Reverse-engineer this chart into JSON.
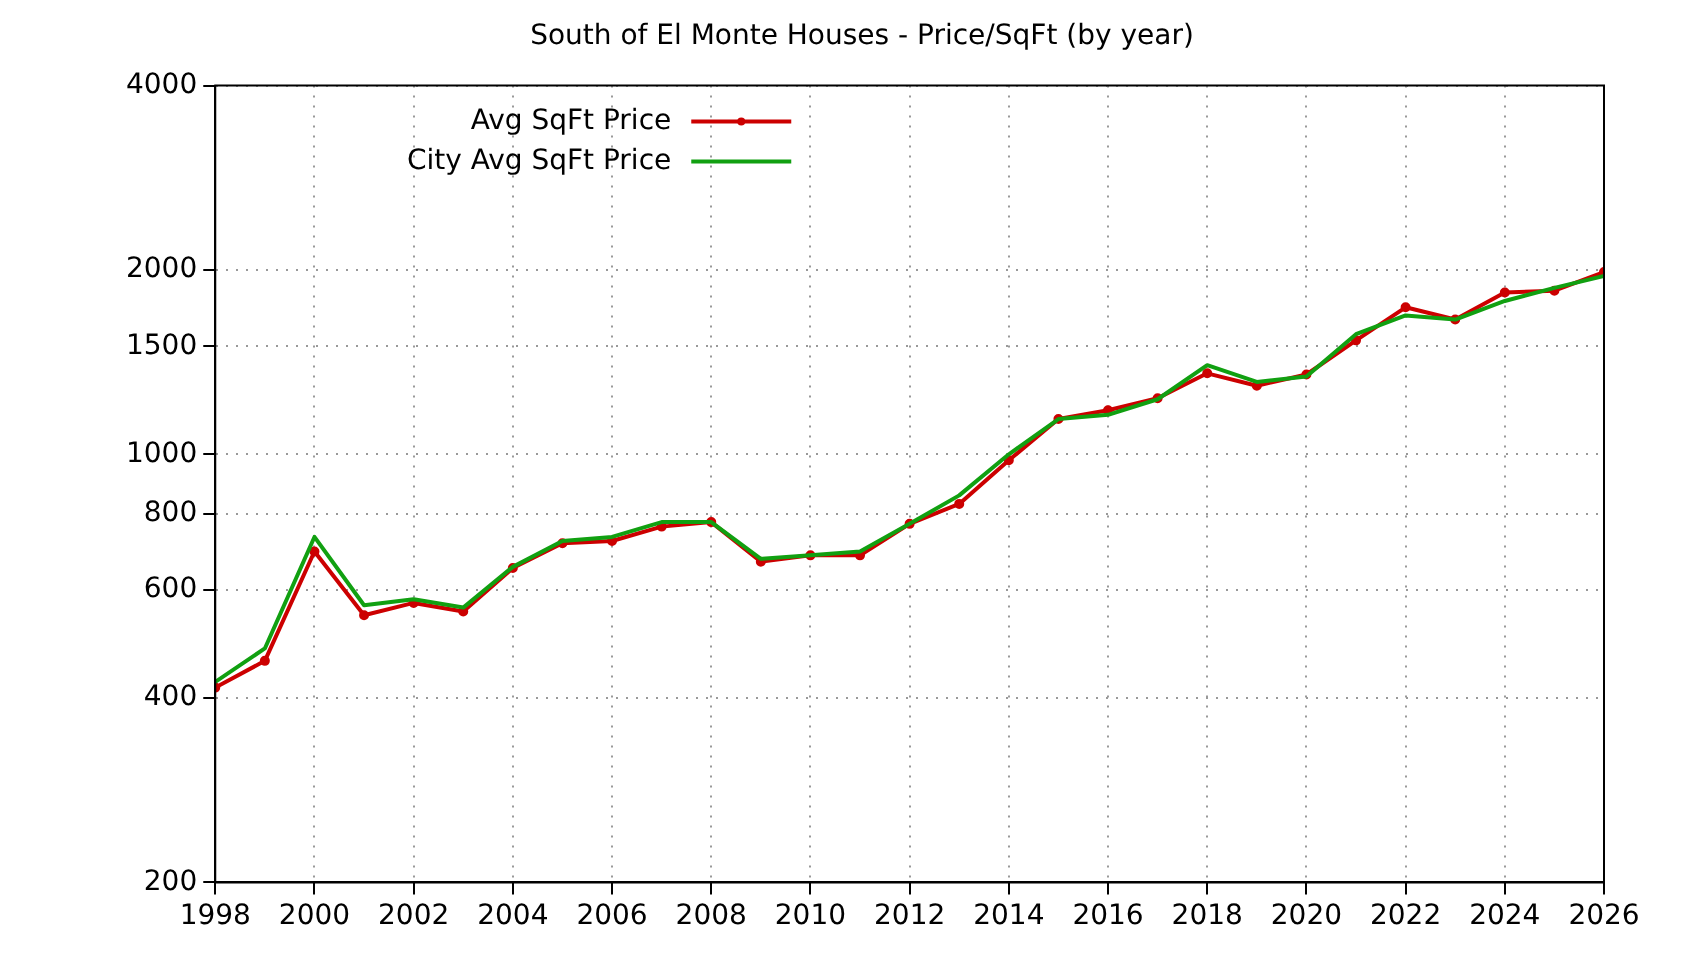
{
  "chart_data": {
    "type": "line",
    "title": "South of El Monte Houses - Price/SqFt (by year)",
    "x": [
      1998,
      1999,
      2000,
      2001,
      2002,
      2003,
      2004,
      2005,
      2006,
      2007,
      2008,
      2009,
      2010,
      2011,
      2012,
      2013,
      2014,
      2015,
      2016,
      2017,
      2018,
      2019,
      2020,
      2021,
      2022,
      2023,
      2024,
      2025,
      2026
    ],
    "series": [
      {
        "name": "Avg SqFt Price",
        "color": "#cc0000",
        "marker": "circle",
        "values": [
          416,
          460,
          694,
          546,
          572,
          554,
          652,
          716,
          722,
          762,
          775,
          668,
          684,
          684,
          770,
          830,
          978,
          1142,
          1180,
          1235,
          1356,
          1294,
          1350,
          1535,
          1738,
          1660,
          1837,
          1850,
          1984
        ]
      },
      {
        "name": "City Avg SqFt Price",
        "color": "#11a011",
        "marker": "none",
        "values": [
          425,
          482,
          733,
          567,
          580,
          562,
          655,
          722,
          733,
          775,
          775,
          675,
          684,
          694,
          770,
          857,
          1000,
          1142,
          1160,
          1230,
          1398,
          1313,
          1340,
          1571,
          1686,
          1660,
          1780,
          1870,
          1955
        ]
      }
    ],
    "xlim": [
      1998,
      2026
    ],
    "xticks": [
      1998,
      2000,
      2002,
      2004,
      2006,
      2008,
      2010,
      2012,
      2014,
      2016,
      2018,
      2020,
      2022,
      2024,
      2026
    ],
    "ylim": [
      200,
      4000
    ],
    "yticks": [
      200,
      400,
      600,
      800,
      1000,
      1500,
      2000,
      4000
    ],
    "log": "y",
    "grid": true,
    "legend": "top left",
    "line_style": "solid"
  }
}
